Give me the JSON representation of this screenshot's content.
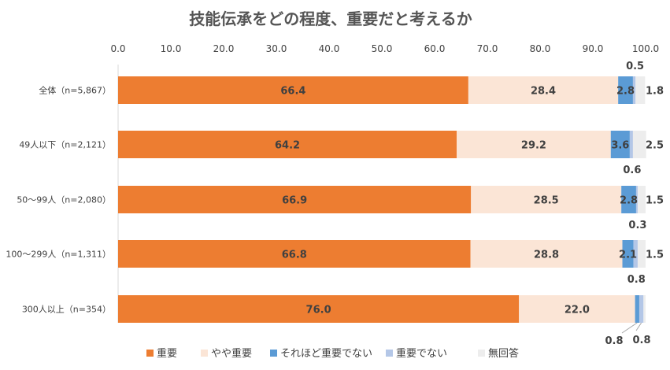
{
  "chart_data": {
    "type": "bar",
    "orientation": "horizontal",
    "stacked": true,
    "title": "技能伝承をどの程度、重要だと考えるか",
    "xlim": [
      0,
      100
    ],
    "x_ticks": [
      "0.0",
      "10.0",
      "20.0",
      "30.0",
      "40.0",
      "50.0",
      "60.0",
      "70.0",
      "80.0",
      "90.0",
      "100.0"
    ],
    "categories": [
      "全体（n=5,867）",
      "49人以下（n=2,121）",
      "50～99人（n=2,080）",
      "100～299人（n=1,311）",
      "300人以上（n=354）"
    ],
    "series": [
      {
        "name": "重要",
        "color": "#ED7D31",
        "values": [
          66.4,
          64.2,
          66.9,
          66.8,
          76.0
        ]
      },
      {
        "name": "やや重要",
        "color": "#FBE5D6",
        "values": [
          28.4,
          29.2,
          28.5,
          28.8,
          22.0
        ]
      },
      {
        "name": "それほど重要でない",
        "color": "#5B9BD5",
        "values": [
          2.8,
          3.6,
          2.8,
          2.1,
          0.8
        ]
      },
      {
        "name": "重要でない",
        "color": "#B4C7E7",
        "values": [
          0.5,
          0.6,
          0.3,
          0.8,
          0.8
        ]
      },
      {
        "name": "無回答",
        "color": "#EDEDED",
        "values": [
          1.8,
          2.5,
          1.5,
          1.5,
          0.4
        ]
      }
    ],
    "value_labels": [
      [
        "66.4",
        "28.4",
        "2.8",
        "0.5",
        "1.8"
      ],
      [
        "64.2",
        "29.2",
        "3.6",
        "0.6",
        "2.5"
      ],
      [
        "66.9",
        "28.5",
        "2.8",
        "0.3",
        "1.5"
      ],
      [
        "66.8",
        "28.8",
        "2.1",
        "0.8",
        "1.5"
      ],
      [
        "76.0",
        "22.0",
        "0.8",
        "0.8",
        ""
      ]
    ],
    "legend_position": "bottom",
    "grid": false
  }
}
